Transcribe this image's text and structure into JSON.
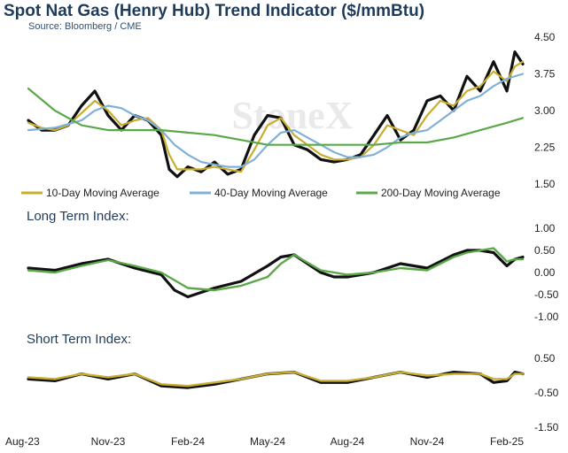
{
  "header": {
    "title": "Spot Nat Gas (Henry Hub) Trend Indicator ($/mmBtu)",
    "source": "Source: Bloomberg / CME",
    "watermark": "StoneX"
  },
  "colors": {
    "price": "#111111",
    "ma10": "#c8ad2e",
    "ma40": "#7fb0d8",
    "ma200": "#5aa848",
    "long_index": "#5aa848",
    "short_index": "#c8ad2e"
  },
  "chart_data": [
    {
      "type": "line",
      "panel": "price",
      "title": "Spot Nat Gas (Henry Hub) Trend Indicator ($/mmBtu)",
      "ylim": [
        1.5,
        4.5
      ],
      "y_ticks": [
        "1.50",
        "2.25",
        "3.00",
        "3.75",
        "4.50"
      ],
      "x_ticks": [
        "Aug-23",
        "Nov-23",
        "Feb-24",
        "May-24",
        "Aug-24",
        "Nov-24",
        "Feb-25"
      ],
      "x_tick_pos": [
        0,
        3,
        6,
        9,
        12,
        15,
        18
      ],
      "x_range": [
        0,
        18.6
      ],
      "legend": [
        "10-Day Moving Average",
        "40-Day Moving Average",
        "200-Day Moving Average"
      ],
      "series": [
        {
          "key": "price",
          "x": [
            0,
            0.5,
            1,
            1.5,
            2,
            2.5,
            3,
            3.5,
            4,
            4.5,
            5,
            5.3,
            5.6,
            6,
            6.5,
            7,
            7.5,
            8,
            8.5,
            9,
            9.5,
            10,
            10.5,
            11,
            11.5,
            12,
            12.5,
            13,
            13.5,
            14,
            14.5,
            15,
            15.5,
            16,
            16.5,
            17,
            17.5,
            18,
            18.3,
            18.6
          ],
          "y": [
            2.8,
            2.6,
            2.6,
            2.7,
            3.1,
            3.4,
            2.9,
            2.6,
            2.9,
            2.8,
            2.5,
            1.8,
            1.65,
            1.85,
            1.75,
            1.95,
            1.7,
            1.8,
            2.5,
            2.9,
            2.85,
            2.3,
            2.2,
            2.0,
            1.95,
            2.0,
            2.1,
            2.5,
            2.9,
            2.4,
            2.6,
            3.2,
            3.3,
            3.0,
            3.7,
            3.4,
            4.0,
            3.4,
            4.2,
            3.95
          ]
        },
        {
          "key": "ma10",
          "x": [
            0,
            0.5,
            1,
            1.5,
            2,
            2.5,
            3,
            3.5,
            4,
            4.5,
            5,
            5.3,
            5.6,
            6,
            6.5,
            7,
            7.5,
            8,
            8.5,
            9,
            9.5,
            10,
            10.5,
            11,
            11.5,
            12,
            12.5,
            13,
            13.5,
            14,
            14.5,
            15,
            15.5,
            16,
            16.5,
            17,
            17.5,
            18,
            18.3,
            18.6
          ],
          "y": [
            2.75,
            2.65,
            2.6,
            2.7,
            2.95,
            3.2,
            3.0,
            2.7,
            2.8,
            2.85,
            2.6,
            2.1,
            1.8,
            1.8,
            1.8,
            1.85,
            1.8,
            1.75,
            2.2,
            2.7,
            2.85,
            2.5,
            2.3,
            2.1,
            2.0,
            2.0,
            2.05,
            2.3,
            2.7,
            2.6,
            2.5,
            2.9,
            3.2,
            3.1,
            3.4,
            3.5,
            3.8,
            3.6,
            3.9,
            4.0
          ]
        },
        {
          "key": "ma40",
          "x": [
            0,
            1,
            2,
            2.5,
            3,
            3.5,
            4,
            4.5,
            5,
            5.5,
            6,
            6.5,
            7,
            7.5,
            8,
            8.5,
            9,
            9.5,
            10,
            10.5,
            11,
            11.5,
            12,
            12.5,
            13,
            13.5,
            14,
            14.5,
            15,
            15.5,
            16,
            16.5,
            17,
            17.5,
            18,
            18.6
          ],
          "y": [
            2.6,
            2.65,
            2.8,
            3.0,
            3.1,
            3.05,
            2.9,
            2.8,
            2.6,
            2.3,
            2.1,
            1.95,
            1.9,
            1.85,
            1.85,
            2.0,
            2.3,
            2.55,
            2.6,
            2.45,
            2.3,
            2.15,
            2.05,
            2.05,
            2.1,
            2.25,
            2.45,
            2.55,
            2.6,
            2.8,
            3.0,
            3.2,
            3.3,
            3.5,
            3.65,
            3.75
          ]
        },
        {
          "key": "ma200",
          "x": [
            0,
            1,
            2,
            3,
            4,
            5,
            6,
            7,
            8,
            9,
            10,
            11,
            12,
            13,
            14,
            15,
            16,
            17,
            18,
            18.6
          ],
          "y": [
            3.45,
            3.0,
            2.7,
            2.6,
            2.6,
            2.6,
            2.55,
            2.5,
            2.4,
            2.3,
            2.3,
            2.3,
            2.3,
            2.3,
            2.35,
            2.35,
            2.45,
            2.6,
            2.75,
            2.85
          ]
        }
      ]
    },
    {
      "type": "line",
      "panel": "long",
      "title": "Long Term Index:",
      "ylim": [
        -1.0,
        1.0
      ],
      "y_ticks": [
        "1.00",
        "0.50",
        "0.00",
        "-0.50",
        "-1.00"
      ],
      "x_range": [
        0,
        18.6
      ],
      "series": [
        {
          "key": "price",
          "x": [
            0,
            1,
            2,
            3,
            4,
            5,
            5.5,
            6,
            7,
            8,
            9,
            9.5,
            10,
            11,
            11.5,
            12,
            13,
            14,
            14.5,
            15,
            16,
            16.5,
            17,
            17.5,
            18,
            18.3,
            18.6
          ],
          "y": [
            0.1,
            0.05,
            0.2,
            0.3,
            0.1,
            -0.05,
            -0.4,
            -0.55,
            -0.35,
            -0.2,
            0.15,
            0.35,
            0.4,
            0.0,
            -0.1,
            -0.1,
            0.0,
            0.2,
            0.15,
            0.1,
            0.4,
            0.5,
            0.5,
            0.45,
            0.15,
            0.3,
            0.35
          ]
        },
        {
          "key": "long_index",
          "x": [
            0,
            1,
            2,
            3,
            4,
            5,
            6,
            7,
            8,
            9,
            9.5,
            10,
            11,
            12,
            13,
            14,
            15,
            16,
            16.5,
            17,
            17.5,
            18,
            18.3,
            18.6
          ],
          "y": [
            0.05,
            0.0,
            0.15,
            0.28,
            0.15,
            0.0,
            -0.35,
            -0.4,
            -0.3,
            -0.1,
            0.2,
            0.4,
            0.05,
            -0.05,
            0.0,
            0.1,
            0.05,
            0.35,
            0.45,
            0.5,
            0.55,
            0.25,
            0.3,
            0.3
          ]
        }
      ]
    },
    {
      "type": "line",
      "panel": "short",
      "title": "Short Term Index:",
      "ylim": [
        -1.5,
        0.5
      ],
      "y_ticks": [
        "0.50",
        "-0.50",
        "-1.50"
      ],
      "x_range": [
        0,
        18.6
      ],
      "series": [
        {
          "key": "price",
          "x": [
            0,
            1,
            2,
            3,
            4,
            5,
            6,
            7,
            8,
            9,
            10,
            11,
            12,
            13,
            14,
            15,
            16,
            17,
            17.5,
            18,
            18.3,
            18.6
          ],
          "y": [
            -0.1,
            -0.15,
            0.05,
            -0.1,
            0.05,
            -0.3,
            -0.35,
            -0.25,
            -0.1,
            0.05,
            0.1,
            -0.2,
            -0.2,
            -0.05,
            0.1,
            -0.05,
            0.1,
            0.05,
            -0.2,
            -0.15,
            0.1,
            0.05
          ]
        },
        {
          "key": "short_index",
          "x": [
            0,
            1,
            2,
            3,
            4,
            5,
            6,
            7,
            8,
            9,
            10,
            11,
            12,
            13,
            14,
            15,
            16,
            17,
            17.5,
            18,
            18.3,
            18.6
          ],
          "y": [
            -0.05,
            -0.1,
            0.05,
            -0.05,
            0.05,
            -0.25,
            -0.3,
            -0.2,
            -0.1,
            0.05,
            0.1,
            -0.15,
            -0.15,
            -0.05,
            0.1,
            0.0,
            0.05,
            0.05,
            -0.1,
            -0.1,
            0.05,
            0.05
          ]
        }
      ]
    }
  ]
}
